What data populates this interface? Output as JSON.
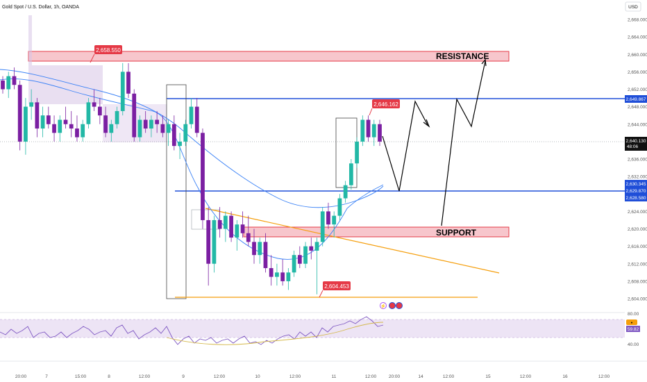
{
  "header": {
    "symbol_title": "Gold Spot / U.S. Dollar, 1h, OANDA",
    "currency_button": "USD"
  },
  "chart_data": {
    "type": "candlestick",
    "title": "Gold Spot / U.S. Dollar, 1h, OANDA",
    "y_axis": {
      "ticks": [
        "2,668.000",
        "2,664.000",
        "2,660.000",
        "2,656.000",
        "2,652.000",
        "2,648.000",
        "2,644.000",
        "2,636.000",
        "2,632.000",
        "2,624.000",
        "2,620.000",
        "2,616.000",
        "2,612.000",
        "2,608.000",
        "2,604.000"
      ],
      "range": [
        2602,
        2669
      ]
    },
    "x_axis": {
      "ticks": [
        "20:00",
        "7",
        "15:00",
        "8",
        "12:00",
        "9",
        "12:00",
        "10",
        "12:00",
        "11",
        "12:00",
        "20:00",
        "14",
        "12:00",
        "15",
        "12:00",
        "16",
        "12:00"
      ]
    },
    "price_labels": {
      "current_price": "2,640.130",
      "countdown": "48:06",
      "resistance_line": "2,649.867",
      "support_line_1": "2,630.345",
      "support_line_2": "2,629.870",
      "support_line_3": "2,628.580"
    },
    "callouts": {
      "high_1": "2,658.550",
      "high_2": "2,646.162",
      "low_1": "2,604.453"
    },
    "zones": {
      "resistance_label": "RESISTANCE",
      "support_label": "SUPPORT"
    },
    "rsi": {
      "ticks": [
        "80.00",
        "40.00"
      ],
      "value_1": "59.82"
    },
    "candles_ohlc": [
      [
        2654,
        2655,
        2651,
        2652
      ],
      [
        2652,
        2656,
        2650,
        2655
      ],
      [
        2655,
        2657,
        2652,
        2653
      ],
      [
        2653,
        2654,
        2638,
        2640
      ],
      [
        2640,
        2650,
        2637,
        2648
      ],
      [
        2648,
        2652,
        2645,
        2649
      ],
      [
        2649,
        2650,
        2641,
        2643
      ],
      [
        2643,
        2648,
        2641,
        2646
      ],
      [
        2646,
        2648,
        2643,
        2644
      ],
      [
        2644,
        2646,
        2640,
        2642
      ],
      [
        2642,
        2646,
        2640,
        2645
      ],
      [
        2645,
        2648,
        2643,
        2644
      ],
      [
        2644,
        2647,
        2641,
        2643
      ],
      [
        2643,
        2646,
        2640,
        2641
      ],
      [
        2641,
        2645,
        2640,
        2644
      ],
      [
        2644,
        2650,
        2643,
        2649
      ],
      [
        2649,
        2652,
        2647,
        2648
      ],
      [
        2648,
        2650,
        2644,
        2646
      ],
      [
        2646,
        2648,
        2641,
        2642
      ],
      [
        2642,
        2645,
        2640,
        2644
      ],
      [
        2644,
        2648,
        2643,
        2647
      ],
      [
        2647,
        2658,
        2646,
        2656
      ],
      [
        2656,
        2658,
        2650,
        2651
      ],
      [
        2651,
        2652,
        2640,
        2641
      ],
      [
        2641,
        2646,
        2640,
        2645
      ],
      [
        2645,
        2647,
        2642,
        2643
      ],
      [
        2643,
        2646,
        2641,
        2645
      ],
      [
        2645,
        2647,
        2642,
        2644
      ],
      [
        2644,
        2646,
        2641,
        2642
      ],
      [
        2642,
        2645,
        2639,
        2644
      ],
      [
        2644,
        2646,
        2638,
        2639
      ],
      [
        2639,
        2642,
        2636,
        2640
      ],
      [
        2640,
        2645,
        2639,
        2644
      ],
      [
        2644,
        2650,
        2643,
        2648
      ],
      [
        2648,
        2650,
        2641,
        2642
      ],
      [
        2642,
        2643,
        2620,
        2622
      ],
      [
        2622,
        2625,
        2607,
        2612
      ],
      [
        2612,
        2623,
        2610,
        2622
      ],
      [
        2622,
        2625,
        2618,
        2620
      ],
      [
        2620,
        2624,
        2617,
        2623
      ],
      [
        2623,
        2624,
        2617,
        2618
      ],
      [
        2618,
        2622,
        2615,
        2621
      ],
      [
        2621,
        2624,
        2618,
        2619
      ],
      [
        2619,
        2623,
        2616,
        2617
      ],
      [
        2617,
        2620,
        2612,
        2614
      ],
      [
        2614,
        2618,
        2612,
        2617
      ],
      [
        2617,
        2619,
        2610,
        2611
      ],
      [
        2611,
        2614,
        2607,
        2609
      ],
      [
        2609,
        2612,
        2607,
        2610
      ],
      [
        2610,
        2613,
        2607,
        2608
      ],
      [
        2608,
        2611,
        2606,
        2610
      ],
      [
        2610,
        2615,
        2609,
        2614
      ],
      [
        2614,
        2616,
        2611,
        2612
      ],
      [
        2612,
        2617,
        2611,
        2616
      ],
      [
        2616,
        2618,
        2613,
        2615
      ],
      [
        2615,
        2618,
        2605,
        2617
      ],
      [
        2617,
        2625,
        2616,
        2624
      ],
      [
        2624,
        2626,
        2620,
        2621
      ],
      [
        2621,
        2624,
        2618,
        2623
      ],
      [
        2623,
        2628,
        2622,
        2627
      ],
      [
        2627,
        2631,
        2626,
        2630
      ],
      [
        2630,
        2636,
        2629,
        2635
      ],
      [
        2635,
        2641,
        2634,
        2640
      ],
      [
        2640,
        2646,
        2639,
        2645
      ],
      [
        2645,
        2646,
        2640,
        2641
      ],
      [
        2641,
        2645,
        2639,
        2644
      ],
      [
        2644,
        2645,
        2639,
        2640
      ]
    ]
  }
}
